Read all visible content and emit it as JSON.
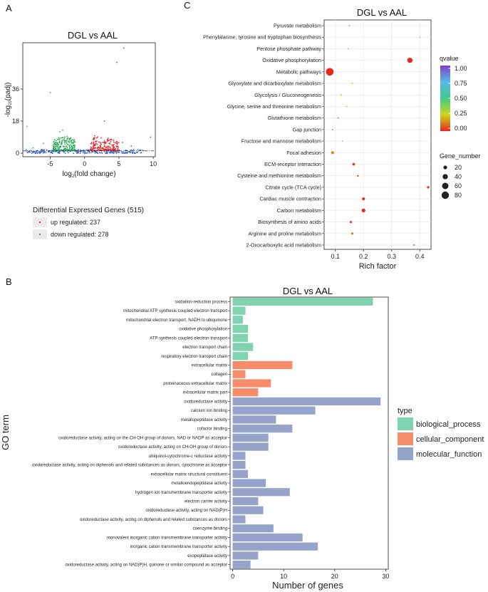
{
  "panels": {
    "a": "A",
    "b": "B",
    "c": "C"
  },
  "colors": {
    "up": "#e0262a",
    "down": "#2aaa55",
    "ns": "#3f66c8",
    "bp": "#7fd3b0",
    "cc": "#f78c6b",
    "mf": "#96a4cb",
    "grid": "#e6e6e6",
    "panel_bg": "#ffffff",
    "legend_bg": "#ebebeb"
  },
  "chart_data": [
    {
      "id": "volcano",
      "type": "scatter",
      "title": "DGL vs AAL",
      "xlabel": "log2(fold change)",
      "xlabel_main": "log",
      "xlabel_sub": "2",
      "xlabel_rest": "(fold change)",
      "ylabel": "-log10(padj)",
      "ylabel_main": "-log",
      "ylabel_sub": "10",
      "ylabel_rest": "(padj)",
      "xlim": [
        -9,
        10.3
      ],
      "ylim": [
        -2,
        62
      ],
      "xticks": [
        -5,
        0,
        5,
        10
      ],
      "yticks": [
        0,
        18,
        36
      ],
      "threshold_y": 1.3,
      "legend_title": "Differential Expressed Genes (515)",
      "legend": [
        {
          "key": "up",
          "label": "up regulated: 237"
        },
        {
          "key": "down",
          "label": "down regulated: 278"
        }
      ],
      "highlight_up": [
        [
          5.7,
          59
        ],
        [
          4.7,
          51
        ],
        [
          2.9,
          18
        ],
        [
          5.5,
          6
        ],
        [
          9.6,
          9
        ],
        [
          3.5,
          7
        ],
        [
          6.8,
          4
        ],
        [
          1.3,
          3
        ]
      ],
      "highlight_down": [
        [
          -5,
          34
        ],
        [
          -8.4,
          15
        ],
        [
          -6,
          5.5
        ],
        [
          -3.2,
          13
        ],
        [
          -3.6,
          12
        ],
        [
          -7.5,
          3
        ]
      ]
    },
    {
      "id": "kegg",
      "type": "scatter",
      "title": "DGL vs AAL",
      "xlabel": "Rich factor",
      "ylabel": "",
      "xlim": [
        0.06,
        0.44
      ],
      "xticks": [
        0.1,
        0.2,
        0.3,
        0.4
      ],
      "color_legend_title": "qvalue",
      "color_ticks": [
        "1.00",
        "0.75",
        "0.50",
        "0.25",
        "0.00"
      ],
      "size_legend_title": "Gene_number",
      "size_legend": [
        {
          "v": 20,
          "label": "20"
        },
        {
          "v": 40,
          "label": "40"
        },
        {
          "v": 60,
          "label": "60"
        },
        {
          "v": 80,
          "label": "80"
        }
      ],
      "pathways": [
        {
          "name": "Pyruvate metabolism",
          "rich": 0.15,
          "q": 0.35,
          "genes": 3
        },
        {
          "name": "Phenylalanine, tyrosine and tryptophan biosynthesis",
          "rich": 0.4,
          "q": 0.3,
          "genes": 2
        },
        {
          "name": "Pentose phosphate pathway",
          "rich": 0.145,
          "q": 0.55,
          "genes": 2
        },
        {
          "name": "Oxidative phosphorylation",
          "rich": 0.365,
          "q": 0.0,
          "genes": 40
        },
        {
          "name": "Metabolic pathways",
          "rich": 0.08,
          "q": 0.0,
          "genes": 85
        },
        {
          "name": "Glyoxylate and dicarboxylate metabolism",
          "rich": 0.16,
          "q": 0.28,
          "genes": 3
        },
        {
          "name": "Glycolysis / Gluconeogenesis",
          "rich": 0.12,
          "q": 0.25,
          "genes": 4
        },
        {
          "name": "Glycine, serine and threonine metabolism",
          "rich": 0.14,
          "q": 0.3,
          "genes": 3
        },
        {
          "name": "Glutathione metabolism",
          "rich": 0.11,
          "q": 0.5,
          "genes": 3
        },
        {
          "name": "Gap junction",
          "rich": 0.09,
          "q": 0.55,
          "genes": 3
        },
        {
          "name": "Fructose and mannose metabolism",
          "rich": 0.125,
          "q": 0.45,
          "genes": 2
        },
        {
          "name": "Focal adhesion",
          "rich": 0.09,
          "q": 0.13,
          "genes": 12
        },
        {
          "name": "ECM-receptor interaction",
          "rich": 0.165,
          "q": 0.02,
          "genes": 10
        },
        {
          "name": "Cysteine and methionine metabolism",
          "rich": 0.18,
          "q": 0.1,
          "genes": 5
        },
        {
          "name": "Citrate cycle (TCA cycle)",
          "rich": 0.43,
          "q": 0.02,
          "genes": 8
        },
        {
          "name": "Cardiac muscle contraction",
          "rich": 0.2,
          "q": 0.0,
          "genes": 12
        },
        {
          "name": "Carbon metabolism",
          "rich": 0.2,
          "q": 0.0,
          "genes": 20
        },
        {
          "name": "Biosynthesis of amino acids",
          "rich": 0.155,
          "q": 0.05,
          "genes": 8
        },
        {
          "name": "Arginine and proline metabolism",
          "rich": 0.16,
          "q": 0.1,
          "genes": 7
        },
        {
          "name": "2-Oxocarboxylic acid metabolism",
          "rich": 0.38,
          "q": 0.05,
          "genes": 3
        }
      ]
    },
    {
      "id": "go",
      "type": "bar",
      "orientation": "horizontal",
      "title": "DGL vs AAL",
      "xlabel": "Number of genes",
      "ylabel": "GO term",
      "xlim": [
        -0.5,
        30.5
      ],
      "xticks": [
        0,
        10,
        20,
        30
      ],
      "legend_title": "type",
      "legend": [
        {
          "key": "bp",
          "label": "biological_process"
        },
        {
          "key": "cc",
          "label": "cellular_component"
        },
        {
          "key": "mf",
          "label": "molecular_function"
        }
      ],
      "terms": [
        {
          "name": "oxidation-reduction process",
          "value": 27.5,
          "type": "bp"
        },
        {
          "name": "mitochondrial ATP synthesis coupled electron transport",
          "value": 2.5,
          "type": "bp"
        },
        {
          "name": "mitochondrial electron transport, NADH to ubiquinone",
          "value": 2,
          "type": "bp"
        },
        {
          "name": "oxidative phosphorylation",
          "value": 3,
          "type": "bp"
        },
        {
          "name": "ATP synthesis coupled electron transport",
          "value": 3,
          "type": "bp"
        },
        {
          "name": "electron transport chain",
          "value": 4,
          "type": "bp"
        },
        {
          "name": "respiratory electron transport chain",
          "value": 3,
          "type": "bp"
        },
        {
          "name": "extracellular matrix",
          "value": 11.7,
          "type": "cc"
        },
        {
          "name": "collagen",
          "value": 2.5,
          "type": "cc"
        },
        {
          "name": "proteinaceous extracellular matrix",
          "value": 7.5,
          "type": "cc"
        },
        {
          "name": "extracellular matrix part",
          "value": 5,
          "type": "cc"
        },
        {
          "name": "oxidoreductase activity",
          "value": 29,
          "type": "mf"
        },
        {
          "name": "calcium ion binding",
          "value": 16.2,
          "type": "mf"
        },
        {
          "name": "metallopeptidase activity",
          "value": 8.5,
          "type": "mf"
        },
        {
          "name": "cofactor binding",
          "value": 11.7,
          "type": "mf"
        },
        {
          "name": "oxidoreductase activity, acting on the CH-OH group of donors, NAD or NADP as acceptor",
          "value": 7,
          "type": "mf"
        },
        {
          "name": "oxidoreductase activity, acting on CH-OH group of donors",
          "value": 7,
          "type": "mf"
        },
        {
          "name": "ubiquinol-cytochrome-c reductase activity",
          "value": 2.5,
          "type": "mf"
        },
        {
          "name": "oxidoreductase activity, acting on diphenols and related substances as donors, cytochrome as acceptor",
          "value": 2.5,
          "type": "mf"
        },
        {
          "name": "extracellular matrix structural constituent",
          "value": 3,
          "type": "mf"
        },
        {
          "name": "metalloendopeptidase activity",
          "value": 6.5,
          "type": "mf"
        },
        {
          "name": "hydrogen ion transmembrane transporter activity",
          "value": 11.2,
          "type": "mf"
        },
        {
          "name": "electron carrier activity",
          "value": 5,
          "type": "mf"
        },
        {
          "name": "oxidoreductase activity, acting on NAD(P)H",
          "value": 6,
          "type": "mf"
        },
        {
          "name": "oxidoreductase activity, acting on diphenols and related substances as donors",
          "value": 2.5,
          "type": "mf"
        },
        {
          "name": "coenzyme binding",
          "value": 8,
          "type": "mf"
        },
        {
          "name": "monovalent inorganic cation transmembrane transporter activity",
          "value": 13.7,
          "type": "mf"
        },
        {
          "name": "inorganic cation transmembrane transporter activity",
          "value": 16.7,
          "type": "mf"
        },
        {
          "name": "exopeptidase activity",
          "value": 5,
          "type": "mf"
        },
        {
          "name": "oxidoreductase activity, acting on NAD(P)H, quinone or similar compound as acceptor",
          "value": 3.5,
          "type": "mf"
        }
      ]
    }
  ]
}
